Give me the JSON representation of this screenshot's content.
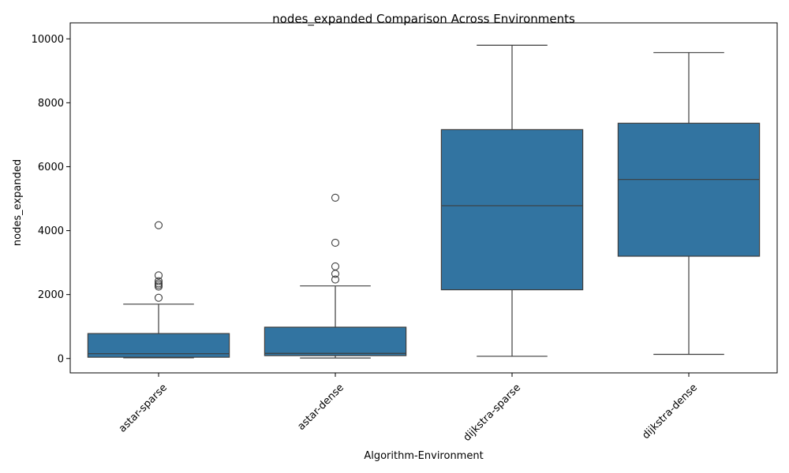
{
  "chart_data": {
    "type": "box",
    "title": "nodes_expanded Comparison Across Environments",
    "xlabel": "Algorithm-Environment",
    "ylabel": "nodes_expanded",
    "ylim": [
      -450,
      10500
    ],
    "yticks": [
      0,
      2000,
      4000,
      6000,
      8000,
      10000
    ],
    "grid": false,
    "box_color": "#3274a1",
    "line_color": "#3d3d3d",
    "boxes": [
      {
        "category": "astar-sparse",
        "whisker_low": 20,
        "q1": 40,
        "median": 150,
        "q3": 780,
        "whisker_high": 1700,
        "outliers": [
          1900,
          2250,
          2300,
          2350,
          2420,
          2600,
          4170
        ]
      },
      {
        "category": "astar-dense",
        "whisker_low": 15,
        "q1": 90,
        "median": 160,
        "q3": 980,
        "whisker_high": 2270,
        "outliers": [
          2470,
          2650,
          2880,
          3620,
          5030
        ]
      },
      {
        "category": "dijkstra-sparse",
        "whisker_low": 70,
        "q1": 2150,
        "median": 4780,
        "q3": 7160,
        "whisker_high": 9800
      },
      {
        "category": "dijkstra-dense",
        "whisker_low": 130,
        "q1": 3200,
        "median": 5600,
        "q3": 7360,
        "whisker_high": 9570
      }
    ]
  }
}
